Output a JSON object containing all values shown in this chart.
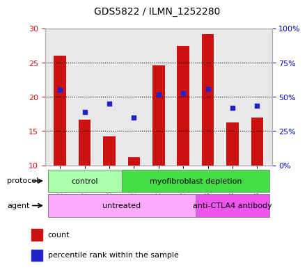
{
  "title": "GDS5822 / ILMN_1252280",
  "samples": [
    "GSM1276599",
    "GSM1276600",
    "GSM1276601",
    "GSM1276602",
    "GSM1276603",
    "GSM1276604",
    "GSM1303940",
    "GSM1303941",
    "GSM1303942"
  ],
  "counts": [
    26.0,
    16.7,
    14.2,
    11.2,
    24.6,
    27.5,
    29.2,
    16.3,
    17.0
  ],
  "percentiles": [
    55.0,
    39.0,
    45.0,
    35.0,
    51.5,
    52.5,
    55.5,
    42.0,
    43.5
  ],
  "ylim_left": [
    10,
    30
  ],
  "ylim_right": [
    0,
    100
  ],
  "yticks_left": [
    10,
    15,
    20,
    25,
    30
  ],
  "yticks_right": [
    0,
    25,
    50,
    75,
    100
  ],
  "ytick_labels_right": [
    "0%",
    "25%",
    "50%",
    "75%",
    "100%"
  ],
  "bar_color": "#cc1111",
  "dot_color": "#2222cc",
  "bar_bottom": 10,
  "bar_width": 0.5,
  "protocol_color_light": "#aaffaa",
  "protocol_color_dark": "#44dd44",
  "agent_color_untreated": "#ffaaff",
  "agent_color_anti": "#ee55ee",
  "grid_color": "#000000",
  "background_color": "#ffffff",
  "axis_plot_bg": "#e8e8e8",
  "label_color_left": "#cc1111",
  "label_color_right": "#0000cc"
}
